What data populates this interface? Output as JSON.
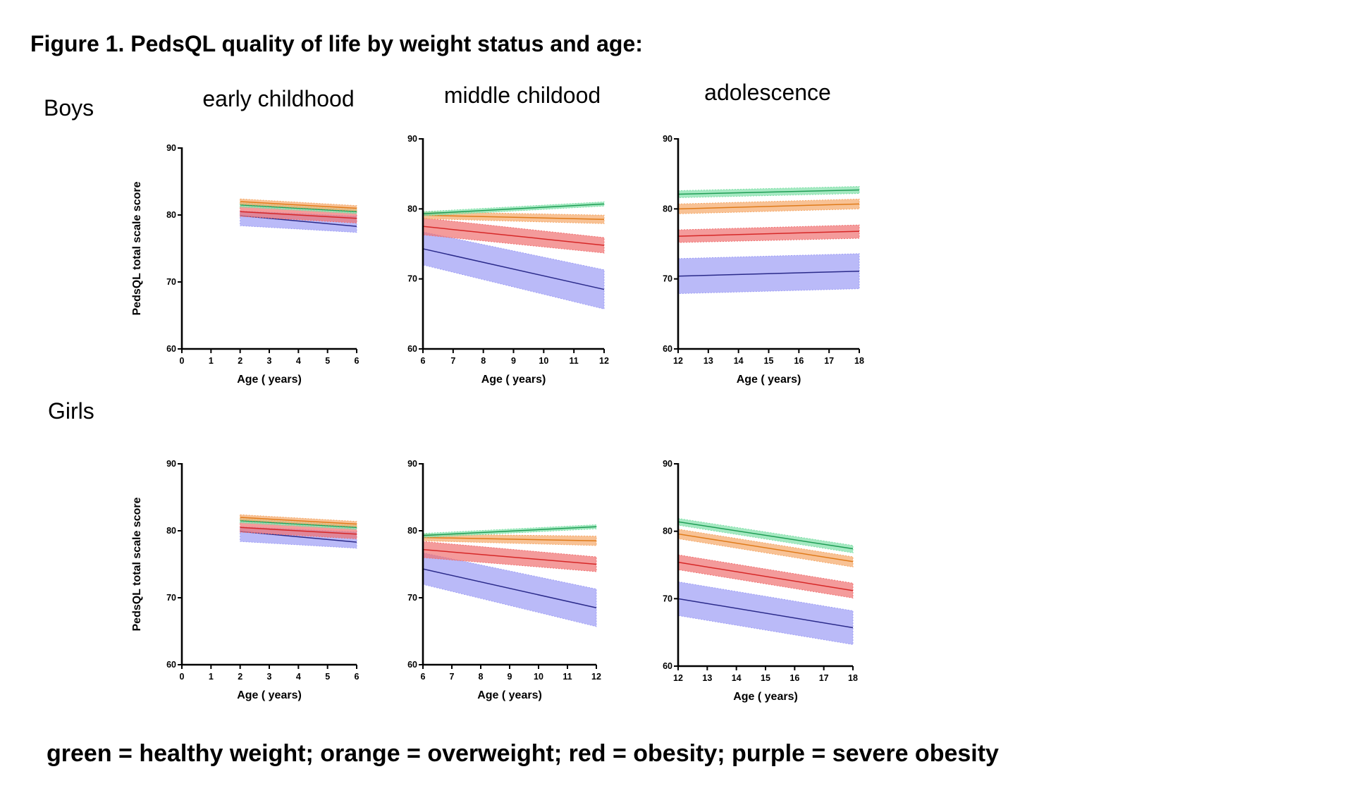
{
  "figure": {
    "title": "Figure 1. PedsQL quality of life by weight status and age:",
    "row_labels": [
      "Boys",
      "Girls"
    ],
    "col_labels": [
      "early childhood",
      "middle childood",
      "adolescence"
    ],
    "legend": "green = healthy weight; orange = overweight; red = obesity; purple = severe obesity"
  },
  "colors": {
    "healthy": {
      "line": "#1f9e55",
      "band": "#7fe0a8"
    },
    "overweight": {
      "line": "#e07b1a",
      "band": "#f5a868"
    },
    "obesity": {
      "line": "#d62828",
      "band": "#f07070"
    },
    "severe": {
      "line": "#2a2a8a",
      "band": "#9d9df5"
    }
  },
  "chart_data": [
    {
      "type": "line",
      "panel": "boys-early-childhood",
      "xlabel": "Age ( years)",
      "ylabel": "PedsQL total scale score",
      "xlim": [
        0,
        6
      ],
      "ylim": [
        60,
        90
      ],
      "xticks": [
        0,
        1,
        2,
        3,
        4,
        5,
        6
      ],
      "yticks": [
        60,
        70,
        80,
        90
      ],
      "series": [
        {
          "name": "severe obesity",
          "key": "severe",
          "x": [
            2,
            6
          ],
          "y": [
            79.9,
            78.3
          ],
          "lower": [
            78.4,
            77.4
          ],
          "upper": [
            80.6,
            79.8
          ]
        },
        {
          "name": "obesity",
          "key": "obesity",
          "x": [
            2,
            6
          ],
          "y": [
            80.5,
            79.5
          ],
          "lower": [
            79.8,
            78.8
          ],
          "upper": [
            81.3,
            80.3
          ]
        },
        {
          "name": "healthy weight",
          "key": "healthy",
          "x": [
            2,
            6
          ],
          "y": [
            81.5,
            80.5
          ],
          "lower": [
            81.2,
            80.2
          ],
          "upper": [
            81.8,
            80.8
          ]
        },
        {
          "name": "overweight",
          "key": "overweight",
          "x": [
            2,
            6
          ],
          "y": [
            82.0,
            81.0
          ],
          "lower": [
            81.6,
            80.6
          ],
          "upper": [
            82.4,
            81.4
          ]
        }
      ]
    },
    {
      "type": "line",
      "panel": "boys-middle-childhood",
      "xlabel": "Age ( years)",
      "ylabel": "",
      "xlim": [
        6,
        12
      ],
      "ylim": [
        60,
        90
      ],
      "xticks": [
        6,
        7,
        8,
        9,
        10,
        11,
        12
      ],
      "yticks": [
        60,
        70,
        80,
        90
      ],
      "series": [
        {
          "name": "severe obesity",
          "key": "severe",
          "x": [
            6,
            12
          ],
          "y": [
            74.3,
            68.5
          ],
          "lower": [
            72.0,
            65.7
          ],
          "upper": [
            76.7,
            71.3
          ]
        },
        {
          "name": "obesity",
          "key": "obesity",
          "x": [
            6,
            12
          ],
          "y": [
            77.5,
            74.8
          ],
          "lower": [
            76.3,
            73.7
          ],
          "upper": [
            78.7,
            75.9
          ]
        },
        {
          "name": "overweight",
          "key": "overweight",
          "x": [
            6,
            12
          ],
          "y": [
            79.1,
            78.5
          ],
          "lower": [
            78.6,
            77.9
          ],
          "upper": [
            79.6,
            79.1
          ]
        },
        {
          "name": "healthy weight",
          "key": "healthy",
          "x": [
            6,
            12
          ],
          "y": [
            79.3,
            80.7
          ],
          "lower": [
            79.0,
            80.4
          ],
          "upper": [
            79.6,
            81.0
          ]
        }
      ]
    },
    {
      "type": "line",
      "panel": "boys-adolescence",
      "xlabel": "Age ( years)",
      "ylabel": "",
      "xlim": [
        12,
        18
      ],
      "ylim": [
        60,
        90
      ],
      "xticks": [
        12,
        13,
        14,
        15,
        16,
        17,
        18
      ],
      "yticks": [
        60,
        70,
        80,
        90
      ],
      "series": [
        {
          "name": "severe obesity",
          "key": "severe",
          "x": [
            12,
            18
          ],
          "y": [
            70.4,
            71.1
          ],
          "lower": [
            67.9,
            68.6
          ],
          "upper": [
            72.9,
            73.6
          ]
        },
        {
          "name": "obesity",
          "key": "obesity",
          "x": [
            12,
            18
          ],
          "y": [
            76.1,
            76.8
          ],
          "lower": [
            75.2,
            75.8
          ],
          "upper": [
            77.0,
            77.7
          ]
        },
        {
          "name": "overweight",
          "key": "overweight",
          "x": [
            12,
            18
          ],
          "y": [
            80.0,
            80.7
          ],
          "lower": [
            79.3,
            80.0
          ],
          "upper": [
            80.7,
            81.4
          ]
        },
        {
          "name": "healthy weight",
          "key": "healthy",
          "x": [
            12,
            18
          ],
          "y": [
            82.1,
            82.7
          ],
          "lower": [
            81.6,
            82.2
          ],
          "upper": [
            82.6,
            83.2
          ]
        }
      ]
    },
    {
      "type": "line",
      "panel": "girls-early-childhood",
      "xlabel": "Age ( years)",
      "ylabel": "PedsQL total scale score",
      "xlim": [
        0,
        6
      ],
      "ylim": [
        60,
        90
      ],
      "xticks": [
        0,
        1,
        2,
        3,
        4,
        5,
        6
      ],
      "yticks": [
        60,
        70,
        80,
        90
      ],
      "series": [
        {
          "name": "severe obesity",
          "key": "severe",
          "x": [
            2,
            6
          ],
          "y": [
            79.9,
            78.3
          ],
          "lower": [
            78.4,
            77.4
          ],
          "upper": [
            80.6,
            79.8
          ]
        },
        {
          "name": "obesity",
          "key": "obesity",
          "x": [
            2,
            6
          ],
          "y": [
            80.5,
            79.5
          ],
          "lower": [
            79.8,
            78.8
          ],
          "upper": [
            81.3,
            80.3
          ]
        },
        {
          "name": "healthy weight",
          "key": "healthy",
          "x": [
            2,
            6
          ],
          "y": [
            81.5,
            80.5
          ],
          "lower": [
            81.2,
            80.2
          ],
          "upper": [
            81.8,
            80.8
          ]
        },
        {
          "name": "overweight",
          "key": "overweight",
          "x": [
            2,
            6
          ],
          "y": [
            82.0,
            81.0
          ],
          "lower": [
            81.6,
            80.6
          ],
          "upper": [
            82.4,
            81.4
          ]
        }
      ]
    },
    {
      "type": "line",
      "panel": "girls-middle-childhood",
      "xlabel": "Age ( years)",
      "ylabel": "",
      "xlim": [
        6,
        12
      ],
      "ylim": [
        60,
        90
      ],
      "xticks": [
        6,
        7,
        8,
        9,
        10,
        11,
        12
      ],
      "yticks": [
        60,
        70,
        80,
        90
      ],
      "series": [
        {
          "name": "severe obesity",
          "key": "severe",
          "x": [
            6,
            12
          ],
          "y": [
            74.3,
            68.5
          ],
          "lower": [
            72.0,
            65.7
          ],
          "upper": [
            76.7,
            71.3
          ]
        },
        {
          "name": "obesity",
          "key": "obesity",
          "x": [
            6,
            12
          ],
          "y": [
            77.2,
            75.0
          ],
          "lower": [
            76.0,
            73.9
          ],
          "upper": [
            78.4,
            76.1
          ]
        },
        {
          "name": "overweight",
          "key": "overweight",
          "x": [
            6,
            12
          ],
          "y": [
            79.0,
            78.5
          ],
          "lower": [
            78.5,
            77.8
          ],
          "upper": [
            79.5,
            79.2
          ]
        },
        {
          "name": "healthy weight",
          "key": "healthy",
          "x": [
            6,
            12
          ],
          "y": [
            79.3,
            80.6
          ],
          "lower": [
            79.0,
            80.3
          ],
          "upper": [
            79.6,
            80.9
          ]
        }
      ]
    },
    {
      "type": "line",
      "panel": "girls-adolescence",
      "xlabel": "Age ( years)",
      "ylabel": "",
      "xlim": [
        12,
        18
      ],
      "ylim": [
        60,
        90
      ],
      "xticks": [
        12,
        13,
        14,
        15,
        16,
        17,
        18
      ],
      "yticks": [
        60,
        70,
        80,
        90
      ],
      "series": [
        {
          "name": "severe obesity",
          "key": "severe",
          "x": [
            12,
            18
          ],
          "y": [
            70.0,
            65.7
          ],
          "lower": [
            67.5,
            63.2
          ],
          "upper": [
            72.5,
            68.2
          ]
        },
        {
          "name": "obesity",
          "key": "obesity",
          "x": [
            12,
            18
          ],
          "y": [
            75.4,
            71.2
          ],
          "lower": [
            74.3,
            70.1
          ],
          "upper": [
            76.5,
            72.3
          ]
        },
        {
          "name": "overweight",
          "key": "overweight",
          "x": [
            12,
            18
          ],
          "y": [
            79.6,
            75.5
          ],
          "lower": [
            78.9,
            74.7
          ],
          "upper": [
            80.3,
            76.2
          ]
        },
        {
          "name": "healthy weight",
          "key": "healthy",
          "x": [
            12,
            18
          ],
          "y": [
            81.4,
            77.4
          ],
          "lower": [
            80.9,
            76.8
          ],
          "upper": [
            81.9,
            77.9
          ]
        }
      ]
    }
  ]
}
